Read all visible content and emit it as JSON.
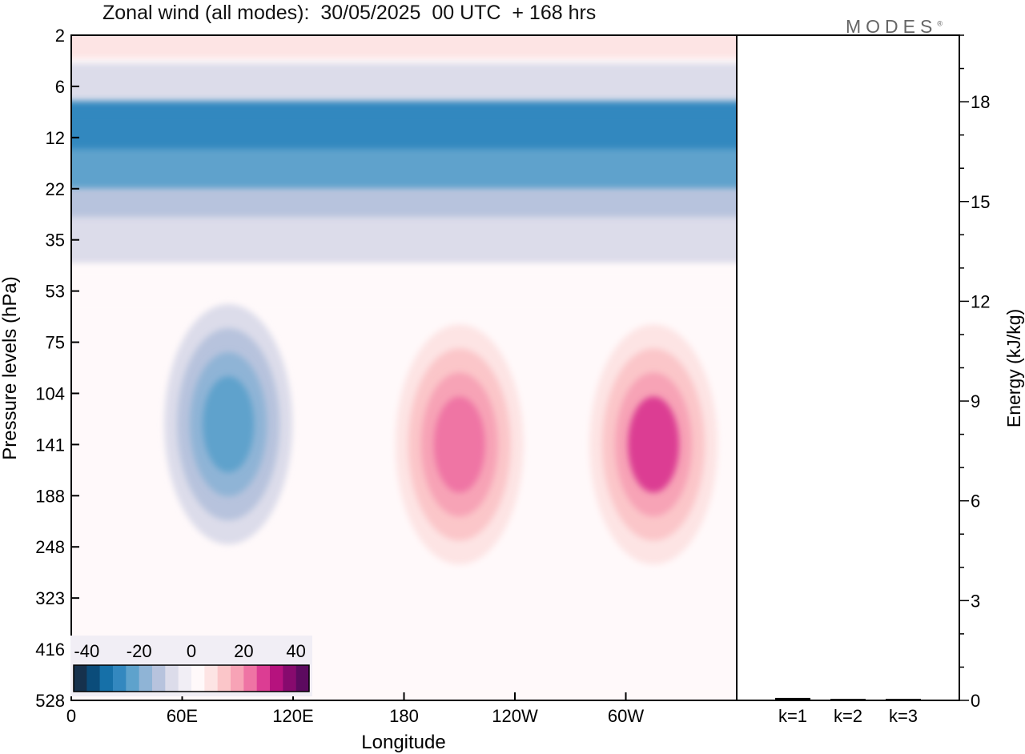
{
  "header": {
    "title": "Zonal wind (all modes):  30/05/2025  00 UTC  + 168 hrs",
    "brand": "MODES",
    "brand_mark": "®"
  },
  "chart_data": [
    {
      "type": "heatmap",
      "title": "Zonal wind (all modes):  30/05/2025  00 UTC  + 168 hrs",
      "xlabel": "Longitude",
      "ylabel": "Pressure levels (hPa)",
      "x_ticks": [
        "0",
        "60E",
        "120E",
        "180",
        "120W",
        "60W"
      ],
      "x_tick_values": [
        0,
        60,
        120,
        180,
        240,
        300
      ],
      "xlim": [
        0,
        360
      ],
      "y_ticks": [
        "2",
        "6",
        "12",
        "22",
        "35",
        "53",
        "75",
        "104",
        "141",
        "188",
        "248",
        "323",
        "416",
        "528"
      ],
      "colorbar": {
        "labels": [
          "-40",
          "-20",
          "0",
          "20",
          "40"
        ],
        "label_values": [
          -40,
          -20,
          0,
          20,
          40
        ],
        "range": [
          -45,
          45
        ],
        "colors": [
          "#16314d",
          "#0b4c7a",
          "#1670a8",
          "#3388bf",
          "#5ea2cc",
          "#8fb4d6",
          "#b7c3dd",
          "#dcdcea",
          "#f1eef5",
          "#fff9fa",
          "#fde4e4",
          "#fbc6c9",
          "#f7a3b6",
          "#ef74a4",
          "#dc3d93",
          "#b6127e",
          "#870a6e",
          "#5c0a5f"
        ]
      },
      "features": [
        {
          "lon": [
            0,
            360
          ],
          "level": "2",
          "value": 8
        },
        {
          "lon": [
            0,
            360
          ],
          "level": "6",
          "value": -6
        },
        {
          "lon": [
            0,
            360
          ],
          "level": "10",
          "value": -30
        },
        {
          "lon": [
            0,
            360
          ],
          "level": "12",
          "value": -27
        },
        {
          "lon": [
            0,
            360
          ],
          "level": "18",
          "value": -22
        },
        {
          "lon": [
            0,
            360
          ],
          "level": "27",
          "value": -14
        },
        {
          "lon": [
            0,
            360
          ],
          "level": "35",
          "value": -8
        },
        {
          "lon": [
            0,
            360
          ],
          "level": "53",
          "value": 1
        },
        {
          "lon": [
            85,
            85
          ],
          "level": "125",
          "value": -22
        },
        {
          "lon": [
            210,
            210
          ],
          "level": "141",
          "value": 22
        },
        {
          "lon": [
            315,
            315
          ],
          "level": "141",
          "value": 26
        }
      ]
    },
    {
      "type": "bar",
      "categories": [
        "k=1",
        "k=2",
        "k=3"
      ],
      "values": [
        0.05,
        0.02,
        0.02
      ],
      "ylabel": "Energy (kJ/kg)",
      "y_ticks": [
        0,
        3,
        6,
        9,
        12,
        15,
        18
      ],
      "ylim": [
        0,
        20
      ]
    }
  ]
}
